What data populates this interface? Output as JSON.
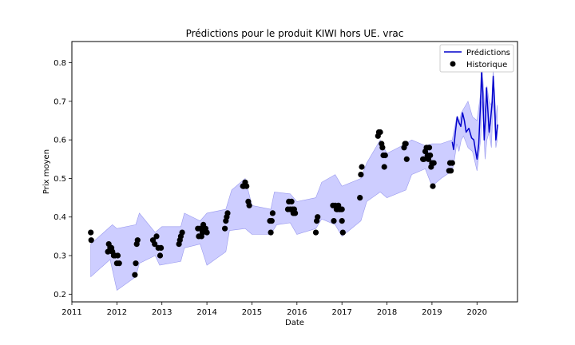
{
  "chart_data": {
    "type": "line",
    "title": "Prédictions pour le produit KIWI hors UE. vrac",
    "xlabel": "Date",
    "ylabel": "Prix moyen",
    "xlim": [
      2011.0,
      2020.9
    ],
    "ylim": [
      0.18,
      0.855
    ],
    "x_ticks": [
      2011,
      2012,
      2013,
      2014,
      2015,
      2016,
      2017,
      2018,
      2019,
      2020
    ],
    "x_tick_labels": [
      "2011",
      "2012",
      "2013",
      "2014",
      "2015",
      "2016",
      "2017",
      "2018",
      "2019",
      "2020"
    ],
    "y_ticks": [
      0.2,
      0.3,
      0.4,
      0.5,
      0.6,
      0.7,
      0.8
    ],
    "y_tick_labels": [
      "0.2",
      "0.3",
      "0.4",
      "0.5",
      "0.6",
      "0.7",
      "0.8"
    ],
    "grid": false,
    "legend_position": "top-right",
    "legend": [
      {
        "label": "Prédictions",
        "kind": "line",
        "color": "#0000cc"
      },
      {
        "label": "Historique",
        "kind": "marker",
        "color": "#000000"
      }
    ],
    "colors": {
      "prediction_line": "#0000cc",
      "interval_fill": "#c8c8ff",
      "interval_edge": "#9999ee",
      "history": "#000000"
    },
    "interval": {
      "upper": [
        [
          2011.42,
          0.33
        ],
        [
          2011.9,
          0.38
        ],
        [
          2012.0,
          0.37
        ],
        [
          2012.42,
          0.38
        ],
        [
          2012.5,
          0.41
        ],
        [
          2012.85,
          0.36
        ],
        [
          2013.0,
          0.375
        ],
        [
          2013.42,
          0.375
        ],
        [
          2013.5,
          0.41
        ],
        [
          2013.85,
          0.39
        ],
        [
          2014.0,
          0.41
        ],
        [
          2014.42,
          0.42
        ],
        [
          2014.55,
          0.47
        ],
        [
          2014.85,
          0.5
        ],
        [
          2015.0,
          0.43
        ],
        [
          2015.42,
          0.42
        ],
        [
          2015.5,
          0.465
        ],
        [
          2015.85,
          0.46
        ],
        [
          2016.0,
          0.44
        ],
        [
          2016.42,
          0.45
        ],
        [
          2016.55,
          0.49
        ],
        [
          2016.85,
          0.51
        ],
        [
          2017.0,
          0.48
        ],
        [
          2017.42,
          0.5
        ],
        [
          2017.55,
          0.54
        ],
        [
          2017.85,
          0.6
        ],
        [
          2018.0,
          0.565
        ],
        [
          2018.42,
          0.59
        ],
        [
          2018.55,
          0.6
        ],
        [
          2018.85,
          0.585
        ],
        [
          2019.0,
          0.59
        ],
        [
          2019.2,
          0.59
        ],
        [
          2019.45,
          0.6
        ],
        [
          2019.5,
          0.63
        ],
        [
          2019.55,
          0.66
        ],
        [
          2019.6,
          0.64
        ],
        [
          2019.65,
          0.67
        ],
        [
          2019.7,
          0.68
        ],
        [
          2019.8,
          0.7
        ],
        [
          2019.9,
          0.66
        ],
        [
          2020.0,
          0.65
        ],
        [
          2020.08,
          0.72
        ],
        [
          2020.12,
          0.78
        ],
        [
          2020.18,
          0.67
        ],
        [
          2020.22,
          0.74
        ],
        [
          2020.27,
          0.7
        ],
        [
          2020.32,
          0.69
        ],
        [
          2020.36,
          0.78
        ],
        [
          2020.42,
          0.65
        ],
        [
          2020.45,
          0.69
        ]
      ],
      "lower": [
        [
          2011.42,
          0.245
        ],
        [
          2011.85,
          0.29
        ],
        [
          2012.0,
          0.21
        ],
        [
          2012.42,
          0.245
        ],
        [
          2012.5,
          0.28
        ],
        [
          2012.85,
          0.3
        ],
        [
          2012.95,
          0.275
        ],
        [
          2013.42,
          0.285
        ],
        [
          2013.5,
          0.32
        ],
        [
          2013.85,
          0.33
        ],
        [
          2014.0,
          0.275
        ],
        [
          2014.42,
          0.31
        ],
        [
          2014.5,
          0.365
        ],
        [
          2014.85,
          0.37
        ],
        [
          2015.0,
          0.355
        ],
        [
          2015.42,
          0.355
        ],
        [
          2015.55,
          0.38
        ],
        [
          2015.85,
          0.385
        ],
        [
          2016.0,
          0.355
        ],
        [
          2016.42,
          0.37
        ],
        [
          2016.55,
          0.395
        ],
        [
          2016.85,
          0.38
        ],
        [
          2017.0,
          0.35
        ],
        [
          2017.42,
          0.39
        ],
        [
          2017.55,
          0.44
        ],
        [
          2017.85,
          0.465
        ],
        [
          2018.0,
          0.45
        ],
        [
          2018.42,
          0.47
        ],
        [
          2018.55,
          0.51
        ],
        [
          2018.85,
          0.525
        ],
        [
          2019.0,
          0.48
        ],
        [
          2019.2,
          0.5
        ],
        [
          2019.45,
          0.52
        ],
        [
          2019.5,
          0.55
        ],
        [
          2019.55,
          0.59
        ],
        [
          2019.6,
          0.57
        ],
        [
          2019.65,
          0.6
        ],
        [
          2019.7,
          0.61
        ],
        [
          2019.8,
          0.58
        ],
        [
          2019.9,
          0.57
        ],
        [
          2020.0,
          0.52
        ],
        [
          2020.08,
          0.6
        ],
        [
          2020.12,
          0.7
        ],
        [
          2020.18,
          0.55
        ],
        [
          2020.22,
          0.6
        ],
        [
          2020.27,
          0.62
        ],
        [
          2020.32,
          0.58
        ],
        [
          2020.36,
          0.7
        ],
        [
          2020.42,
          0.58
        ],
        [
          2020.45,
          0.6
        ]
      ]
    },
    "series": [
      {
        "name": "Prédictions",
        "kind": "line",
        "points": [
          [
            2019.45,
            0.595
          ],
          [
            2019.48,
            0.575
          ],
          [
            2019.52,
            0.62
          ],
          [
            2019.56,
            0.66
          ],
          [
            2019.6,
            0.645
          ],
          [
            2019.64,
            0.635
          ],
          [
            2019.68,
            0.67
          ],
          [
            2019.72,
            0.65
          ],
          [
            2019.76,
            0.62
          ],
          [
            2019.82,
            0.63
          ],
          [
            2019.88,
            0.605
          ],
          [
            2019.93,
            0.6
          ],
          [
            2019.97,
            0.57
          ],
          [
            2020.0,
            0.55
          ],
          [
            2020.04,
            0.59
          ],
          [
            2020.08,
            0.7
          ],
          [
            2020.1,
            0.775
          ],
          [
            2020.13,
            0.72
          ],
          [
            2020.16,
            0.6
          ],
          [
            2020.19,
            0.66
          ],
          [
            2020.21,
            0.735
          ],
          [
            2020.24,
            0.68
          ],
          [
            2020.27,
            0.62
          ],
          [
            2020.3,
            0.65
          ],
          [
            2020.34,
            0.7
          ],
          [
            2020.36,
            0.765
          ],
          [
            2020.39,
            0.7
          ],
          [
            2020.42,
            0.6
          ],
          [
            2020.44,
            0.62
          ],
          [
            2020.46,
            0.64
          ]
        ]
      },
      {
        "name": "Historique",
        "kind": "scatter",
        "points": [
          [
            2011.42,
            0.36
          ],
          [
            2011.43,
            0.34
          ],
          [
            2011.8,
            0.31
          ],
          [
            2011.82,
            0.33
          ],
          [
            2011.85,
            0.32
          ],
          [
            2011.88,
            0.32
          ],
          [
            2011.9,
            0.31
          ],
          [
            2011.93,
            0.3
          ],
          [
            2011.96,
            0.3
          ],
          [
            2012.0,
            0.28
          ],
          [
            2012.02,
            0.3
          ],
          [
            2012.05,
            0.28
          ],
          [
            2012.4,
            0.25
          ],
          [
            2012.42,
            0.28
          ],
          [
            2012.44,
            0.33
          ],
          [
            2012.46,
            0.34
          ],
          [
            2012.8,
            0.34
          ],
          [
            2012.84,
            0.33
          ],
          [
            2012.88,
            0.35
          ],
          [
            2012.92,
            0.32
          ],
          [
            2012.96,
            0.3
          ],
          [
            2012.98,
            0.32
          ],
          [
            2013.38,
            0.33
          ],
          [
            2013.4,
            0.34
          ],
          [
            2013.42,
            0.35
          ],
          [
            2013.45,
            0.36
          ],
          [
            2013.8,
            0.37
          ],
          [
            2013.82,
            0.35
          ],
          [
            2013.85,
            0.37
          ],
          [
            2013.88,
            0.35
          ],
          [
            2013.9,
            0.36
          ],
          [
            2013.92,
            0.38
          ],
          [
            2013.95,
            0.37
          ],
          [
            2013.97,
            0.37
          ],
          [
            2014.0,
            0.36
          ],
          [
            2014.4,
            0.37
          ],
          [
            2014.42,
            0.39
          ],
          [
            2014.44,
            0.4
          ],
          [
            2014.46,
            0.41
          ],
          [
            2014.8,
            0.48
          ],
          [
            2014.82,
            0.48
          ],
          [
            2014.85,
            0.49
          ],
          [
            2014.88,
            0.48
          ],
          [
            2014.92,
            0.44
          ],
          [
            2014.94,
            0.43
          ],
          [
            2015.4,
            0.39
          ],
          [
            2015.42,
            0.36
          ],
          [
            2015.44,
            0.39
          ],
          [
            2015.46,
            0.41
          ],
          [
            2015.8,
            0.42
          ],
          [
            2015.82,
            0.44
          ],
          [
            2015.85,
            0.42
          ],
          [
            2015.88,
            0.44
          ],
          [
            2015.9,
            0.42
          ],
          [
            2015.92,
            0.41
          ],
          [
            2015.94,
            0.42
          ],
          [
            2015.96,
            0.41
          ],
          [
            2016.42,
            0.36
          ],
          [
            2016.44,
            0.39
          ],
          [
            2016.46,
            0.4
          ],
          [
            2016.8,
            0.43
          ],
          [
            2016.82,
            0.39
          ],
          [
            2016.85,
            0.43
          ],
          [
            2016.88,
            0.42
          ],
          [
            2016.9,
            0.42
          ],
          [
            2016.92,
            0.43
          ],
          [
            2016.94,
            0.42
          ],
          [
            2016.96,
            0.42
          ],
          [
            2016.98,
            0.42
          ],
          [
            2017.0,
            0.42
          ],
          [
            2017.02,
            0.36
          ],
          [
            2017.0,
            0.39
          ],
          [
            2017.4,
            0.45
          ],
          [
            2017.42,
            0.51
          ],
          [
            2017.44,
            0.53
          ],
          [
            2017.8,
            0.61
          ],
          [
            2017.82,
            0.62
          ],
          [
            2017.85,
            0.62
          ],
          [
            2017.88,
            0.59
          ],
          [
            2017.9,
            0.58
          ],
          [
            2017.92,
            0.56
          ],
          [
            2017.94,
            0.53
          ],
          [
            2017.96,
            0.56
          ],
          [
            2018.38,
            0.58
          ],
          [
            2018.4,
            0.59
          ],
          [
            2018.42,
            0.59
          ],
          [
            2018.44,
            0.55
          ],
          [
            2018.8,
            0.55
          ],
          [
            2018.82,
            0.55
          ],
          [
            2018.85,
            0.57
          ],
          [
            2018.88,
            0.58
          ],
          [
            2018.9,
            0.56
          ],
          [
            2018.92,
            0.55
          ],
          [
            2018.94,
            0.58
          ],
          [
            2018.96,
            0.56
          ],
          [
            2018.98,
            0.53
          ],
          [
            2019.0,
            0.54
          ],
          [
            2019.02,
            0.48
          ],
          [
            2019.04,
            0.54
          ],
          [
            2019.38,
            0.52
          ],
          [
            2019.4,
            0.54
          ],
          [
            2019.42,
            0.52
          ],
          [
            2019.45,
            0.54
          ]
        ]
      }
    ]
  }
}
